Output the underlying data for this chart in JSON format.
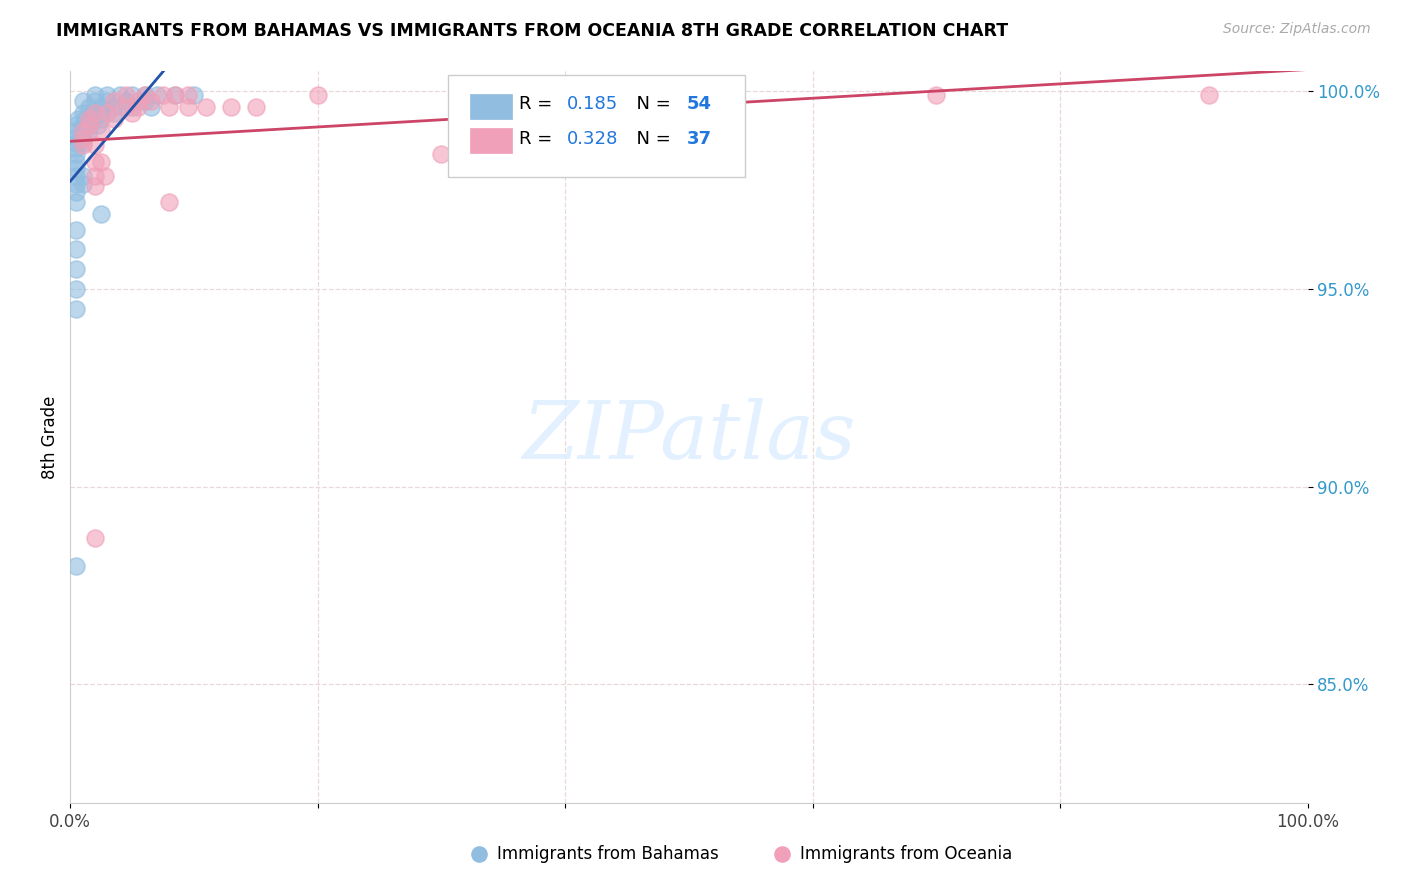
{
  "title": "IMMIGRANTS FROM BAHAMAS VS IMMIGRANTS FROM OCEANIA 8TH GRADE CORRELATION CHART",
  "source": "Source: ZipAtlas.com",
  "ylabel": "8th Grade",
  "xlim": [
    0.0,
    1.0
  ],
  "ylim": [
    0.82,
    1.005
  ],
  "y_tick_values": [
    0.85,
    0.9,
    0.95,
    1.0
  ],
  "y_tick_labels": [
    "85.0%",
    "90.0%",
    "95.0%",
    "100.0%"
  ],
  "x_tick_labels": [
    "0.0%",
    "100.0%"
  ],
  "R_blue": 0.185,
  "N_blue": 54,
  "R_pink": 0.328,
  "N_pink": 37,
  "blue_color": "#90bde0",
  "blue_edge_color": "#5599cc",
  "pink_color": "#f0a0b8",
  "pink_edge_color": "#e06080",
  "trendline_blue_color": "#2255aa",
  "trendline_pink_color": "#cc4466",
  "grid_color": "#e8d8d8",
  "watermark_color": "#ddeeff",
  "watermark": "ZIPatlas",
  "legend_box_color": "#ccddee",
  "legend_pink_box": "#f4aabb",
  "source_color": "#aaaaaa",
  "blue_scatter": [
    [
      0.02,
      0.999
    ],
    [
      0.03,
      0.999
    ],
    [
      0.04,
      0.999
    ],
    [
      0.05,
      0.999
    ],
    [
      0.06,
      0.999
    ],
    [
      0.07,
      0.999
    ],
    [
      0.085,
      0.999
    ],
    [
      0.1,
      0.999
    ],
    [
      0.01,
      0.9975
    ],
    [
      0.02,
      0.9975
    ],
    [
      0.03,
      0.9975
    ],
    [
      0.045,
      0.9975
    ],
    [
      0.06,
      0.9975
    ],
    [
      0.015,
      0.996
    ],
    [
      0.025,
      0.996
    ],
    [
      0.035,
      0.996
    ],
    [
      0.05,
      0.996
    ],
    [
      0.065,
      0.996
    ],
    [
      0.01,
      0.9945
    ],
    [
      0.018,
      0.9945
    ],
    [
      0.025,
      0.9945
    ],
    [
      0.035,
      0.9945
    ],
    [
      0.006,
      0.993
    ],
    [
      0.012,
      0.993
    ],
    [
      0.018,
      0.993
    ],
    [
      0.025,
      0.993
    ],
    [
      0.005,
      0.9915
    ],
    [
      0.01,
      0.9915
    ],
    [
      0.016,
      0.9915
    ],
    [
      0.022,
      0.9915
    ],
    [
      0.005,
      0.99
    ],
    [
      0.01,
      0.99
    ],
    [
      0.015,
      0.99
    ],
    [
      0.005,
      0.9885
    ],
    [
      0.01,
      0.9885
    ],
    [
      0.005,
      0.987
    ],
    [
      0.01,
      0.987
    ],
    [
      0.005,
      0.9855
    ],
    [
      0.005,
      0.984
    ],
    [
      0.005,
      0.982
    ],
    [
      0.005,
      0.9805
    ],
    [
      0.005,
      0.9785
    ],
    [
      0.01,
      0.9785
    ],
    [
      0.005,
      0.9765
    ],
    [
      0.01,
      0.9765
    ],
    [
      0.005,
      0.9745
    ],
    [
      0.005,
      0.972
    ],
    [
      0.025,
      0.969
    ],
    [
      0.005,
      0.965
    ],
    [
      0.005,
      0.96
    ],
    [
      0.005,
      0.955
    ],
    [
      0.005,
      0.95
    ],
    [
      0.005,
      0.945
    ],
    [
      0.005,
      0.88
    ]
  ],
  "pink_scatter": [
    [
      0.045,
      0.999
    ],
    [
      0.06,
      0.999
    ],
    [
      0.075,
      0.999
    ],
    [
      0.085,
      0.999
    ],
    [
      0.095,
      0.999
    ],
    [
      0.2,
      0.999
    ],
    [
      0.7,
      0.999
    ],
    [
      0.92,
      0.999
    ],
    [
      0.035,
      0.9975
    ],
    [
      0.055,
      0.9975
    ],
    [
      0.065,
      0.9975
    ],
    [
      0.045,
      0.996
    ],
    [
      0.055,
      0.996
    ],
    [
      0.08,
      0.996
    ],
    [
      0.095,
      0.996
    ],
    [
      0.11,
      0.996
    ],
    [
      0.13,
      0.996
    ],
    [
      0.15,
      0.996
    ],
    [
      0.02,
      0.9945
    ],
    [
      0.03,
      0.9945
    ],
    [
      0.05,
      0.9945
    ],
    [
      0.015,
      0.993
    ],
    [
      0.035,
      0.993
    ],
    [
      0.015,
      0.9915
    ],
    [
      0.01,
      0.99
    ],
    [
      0.025,
      0.99
    ],
    [
      0.01,
      0.988
    ],
    [
      0.01,
      0.9865
    ],
    [
      0.02,
      0.9865
    ],
    [
      0.3,
      0.984
    ],
    [
      0.02,
      0.982
    ],
    [
      0.025,
      0.982
    ],
    [
      0.02,
      0.9785
    ],
    [
      0.028,
      0.9785
    ],
    [
      0.02,
      0.976
    ],
    [
      0.08,
      0.972
    ],
    [
      0.02,
      0.887
    ]
  ]
}
